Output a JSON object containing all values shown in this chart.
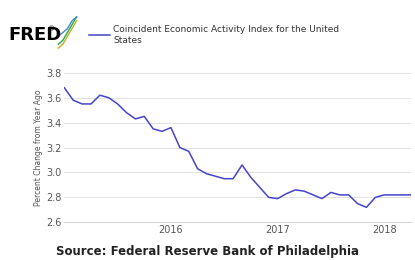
{
  "title_legend": "Coincident Economic Activity Index for the United\nStates",
  "ylabel": "Percent Change from Year Ago",
  "source": "Source: Federal Reserve Bank of Philadelphia",
  "line_color": "#4444cc",
  "ylim": [
    2.6,
    3.8
  ],
  "yticks": [
    2.6,
    2.8,
    3.0,
    3.2,
    3.4,
    3.6,
    3.8
  ],
  "xtick_labels": [
    "2016",
    "2017",
    "2018"
  ],
  "background_color": "#ffffff",
  "grid_color": "#dddddd",
  "x_values": [
    0,
    1,
    2,
    3,
    4,
    5,
    6,
    7,
    8,
    9,
    10,
    11,
    12,
    13,
    14,
    15,
    16,
    17,
    18,
    19,
    20,
    21,
    22,
    23,
    24,
    25,
    26,
    27,
    28,
    29,
    30,
    31,
    32,
    33,
    34,
    35,
    36,
    37,
    38,
    39
  ],
  "y_values": [
    3.68,
    3.58,
    3.55,
    3.55,
    3.62,
    3.6,
    3.55,
    3.48,
    3.43,
    3.45,
    3.35,
    3.33,
    3.36,
    3.2,
    3.17,
    3.03,
    2.99,
    2.97,
    2.95,
    2.95,
    3.06,
    2.96,
    2.88,
    2.8,
    2.79,
    2.83,
    2.86,
    2.85,
    2.82,
    2.79,
    2.84,
    2.82,
    2.82,
    2.75,
    2.72,
    2.8,
    2.82,
    2.82,
    2.82,
    2.82
  ],
  "x_tick_positions": [
    12,
    24,
    36
  ],
  "fred_logo_text": "FRED",
  "source_fontsize": 8.5,
  "tick_fontsize": 7,
  "ylabel_fontsize": 5.5,
  "legend_fontsize": 6.5
}
